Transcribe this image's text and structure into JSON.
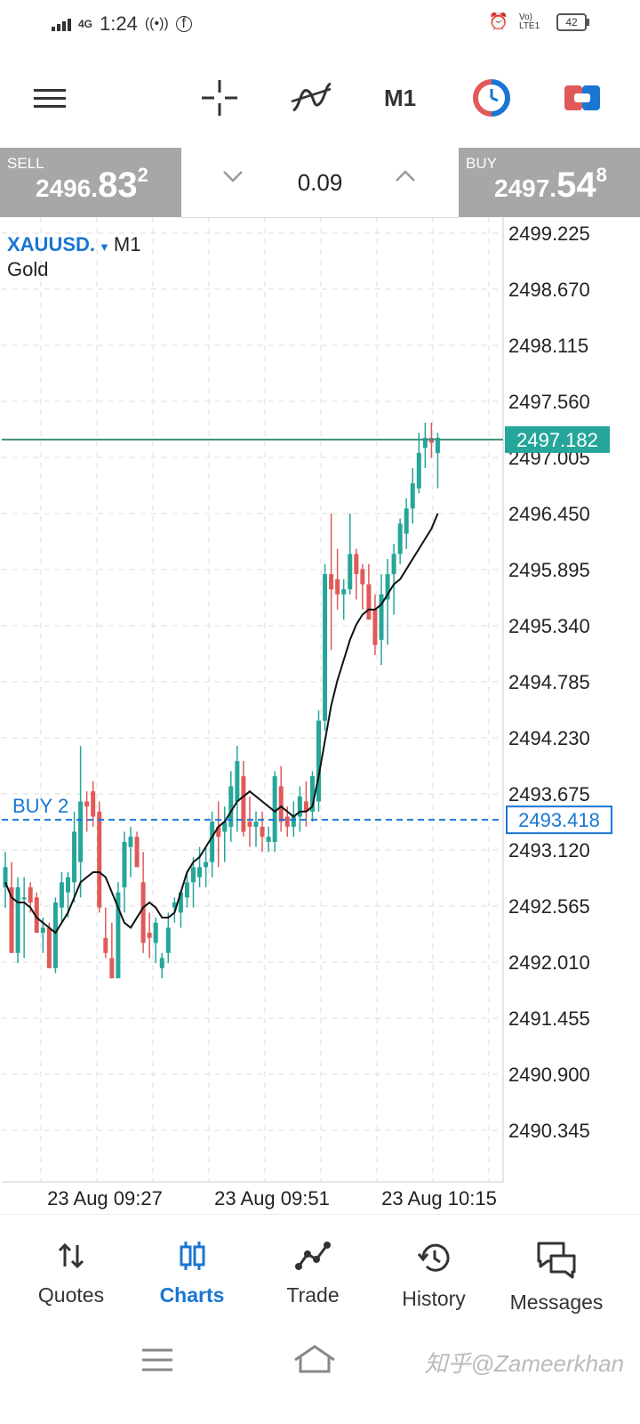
{
  "status_bar": {
    "network": "4G",
    "time": "1:24",
    "volte": "Vo) LTE1",
    "battery": "42"
  },
  "toolbar": {
    "timeframe": "M1"
  },
  "trade": {
    "sell_label": "SELL",
    "sell_price_main": "2496.",
    "sell_price_big": "83",
    "sell_price_sup": "2",
    "lot": "0.09",
    "buy_label": "BUY",
    "buy_price_main": "2497.",
    "buy_price_big": "54",
    "buy_price_sup": "8"
  },
  "chart": {
    "symbol": "XAUUSD.",
    "timeframe": "M1",
    "description": "Gold",
    "price_levels": [
      "2499.225",
      "2498.670",
      "2498.115",
      "2497.560",
      "2497.005",
      "2496.450",
      "2495.895",
      "2495.340",
      "2494.785",
      "2494.230",
      "2493.675",
      "2493.120",
      "2492.565",
      "2492.010",
      "2491.455",
      "2490.900",
      "2490.345"
    ],
    "time_labels": [
      "23 Aug 09:27",
      "23 Aug 09:51",
      "23 Aug 10:15"
    ],
    "current_price_label": "2497.182",
    "current_price": 2497.182,
    "order_line_label": "BUY 2",
    "order_price_label": "2493.418",
    "order_price": 2493.418,
    "colors": {
      "bull": "#26a69a",
      "bear": "#e05a5a",
      "order": "#1976d2",
      "ma": "#111111",
      "current": "#3e8e7e"
    }
  },
  "chart_data": {
    "type": "candlestick",
    "ylim": [
      2489.9,
      2499.45
    ],
    "candles": [
      {
        "o": 2492.75,
        "h": 2493.1,
        "l": 2492.55,
        "c": 2492.95
      },
      {
        "o": 2492.75,
        "h": 2493.0,
        "l": 2492.1,
        "c": 2492.1
      },
      {
        "o": 2492.1,
        "h": 2492.85,
        "l": 2492.0,
        "c": 2492.75
      },
      {
        "o": 2492.65,
        "h": 2492.85,
        "l": 2492.05,
        "c": 2492.65
      },
      {
        "o": 2492.75,
        "h": 2492.8,
        "l": 2492.5,
        "c": 2492.6
      },
      {
        "o": 2492.65,
        "h": 2492.7,
        "l": 2492.3,
        "c": 2492.3
      },
      {
        "o": 2492.3,
        "h": 2492.45,
        "l": 2492.1,
        "c": 2492.35
      },
      {
        "o": 2492.35,
        "h": 2492.4,
        "l": 2491.95,
        "c": 2491.95
      },
      {
        "o": 2491.95,
        "h": 2492.65,
        "l": 2491.9,
        "c": 2492.6
      },
      {
        "o": 2492.55,
        "h": 2492.9,
        "l": 2492.4,
        "c": 2492.8
      },
      {
        "o": 2492.7,
        "h": 2492.9,
        "l": 2492.45,
        "c": 2492.85
      },
      {
        "o": 2492.8,
        "h": 2493.5,
        "l": 2492.6,
        "c": 2493.3
      },
      {
        "o": 2493.0,
        "h": 2494.15,
        "l": 2492.65,
        "c": 2493.6
      },
      {
        "o": 2493.6,
        "h": 2493.7,
        "l": 2493.3,
        "c": 2493.55
      },
      {
        "o": 2493.7,
        "h": 2493.8,
        "l": 2493.35,
        "c": 2493.45
      },
      {
        "o": 2493.5,
        "h": 2493.6,
        "l": 2492.5,
        "c": 2492.55
      },
      {
        "o": 2492.25,
        "h": 2492.55,
        "l": 2492.05,
        "c": 2492.1
      },
      {
        "o": 2492.05,
        "h": 2492.4,
        "l": 2491.85,
        "c": 2491.85
      },
      {
        "o": 2491.85,
        "h": 2492.8,
        "l": 2491.85,
        "c": 2492.7
      },
      {
        "o": 2492.75,
        "h": 2493.3,
        "l": 2492.5,
        "c": 2493.2
      },
      {
        "o": 2493.15,
        "h": 2493.35,
        "l": 2492.85,
        "c": 2493.25
      },
      {
        "o": 2493.25,
        "h": 2493.3,
        "l": 2492.95,
        "c": 2492.95
      },
      {
        "o": 2492.8,
        "h": 2493.1,
        "l": 2492.1,
        "c": 2492.2
      },
      {
        "o": 2492.3,
        "h": 2492.5,
        "l": 2492.05,
        "c": 2492.25
      },
      {
        "o": 2492.2,
        "h": 2492.45,
        "l": 2492.0,
        "c": 2492.4
      },
      {
        "o": 2491.95,
        "h": 2492.1,
        "l": 2491.85,
        "c": 2492.05
      },
      {
        "o": 2492.1,
        "h": 2492.5,
        "l": 2492.0,
        "c": 2492.35
      },
      {
        "o": 2492.55,
        "h": 2492.65,
        "l": 2492.4,
        "c": 2492.6
      },
      {
        "o": 2492.5,
        "h": 2492.7,
        "l": 2492.35,
        "c": 2492.7
      },
      {
        "o": 2492.65,
        "h": 2492.9,
        "l": 2492.55,
        "c": 2492.8
      },
      {
        "o": 2492.8,
        "h": 2493.05,
        "l": 2492.55,
        "c": 2492.95
      },
      {
        "o": 2492.85,
        "h": 2493.15,
        "l": 2492.75,
        "c": 2492.95
      },
      {
        "o": 2492.95,
        "h": 2493.15,
        "l": 2492.75,
        "c": 2493.0
      },
      {
        "o": 2493.0,
        "h": 2493.5,
        "l": 2492.85,
        "c": 2493.4
      },
      {
        "o": 2493.35,
        "h": 2493.6,
        "l": 2492.95,
        "c": 2493.25
      },
      {
        "o": 2493.3,
        "h": 2493.55,
        "l": 2493.0,
        "c": 2493.4
      },
      {
        "o": 2493.35,
        "h": 2493.9,
        "l": 2493.2,
        "c": 2493.75
      },
      {
        "o": 2493.6,
        "h": 2494.15,
        "l": 2493.3,
        "c": 2494.0
      },
      {
        "o": 2493.85,
        "h": 2494.0,
        "l": 2493.25,
        "c": 2493.3
      },
      {
        "o": 2493.4,
        "h": 2493.65,
        "l": 2493.15,
        "c": 2493.35
      },
      {
        "o": 2493.35,
        "h": 2493.5,
        "l": 2493.15,
        "c": 2493.4
      },
      {
        "o": 2493.35,
        "h": 2493.5,
        "l": 2493.1,
        "c": 2493.25
      },
      {
        "o": 2493.2,
        "h": 2493.35,
        "l": 2493.1,
        "c": 2493.25
      },
      {
        "o": 2493.2,
        "h": 2493.9,
        "l": 2493.1,
        "c": 2493.85
      },
      {
        "o": 2493.75,
        "h": 2493.95,
        "l": 2493.3,
        "c": 2493.4
      },
      {
        "o": 2493.45,
        "h": 2493.55,
        "l": 2493.25,
        "c": 2493.35
      },
      {
        "o": 2493.35,
        "h": 2493.6,
        "l": 2493.25,
        "c": 2493.45
      },
      {
        "o": 2493.45,
        "h": 2493.75,
        "l": 2493.3,
        "c": 2493.65
      },
      {
        "o": 2493.6,
        "h": 2493.8,
        "l": 2493.35,
        "c": 2493.5
      },
      {
        "o": 2493.5,
        "h": 2493.9,
        "l": 2493.4,
        "c": 2493.85
      },
      {
        "o": 2493.6,
        "h": 2494.5,
        "l": 2493.5,
        "c": 2494.4
      },
      {
        "o": 2494.4,
        "h": 2495.95,
        "l": 2494.3,
        "c": 2495.85
      },
      {
        "o": 2495.85,
        "h": 2496.45,
        "l": 2495.1,
        "c": 2495.7
      },
      {
        "o": 2495.8,
        "h": 2496.1,
        "l": 2495.5,
        "c": 2495.65
      },
      {
        "o": 2495.65,
        "h": 2495.8,
        "l": 2495.4,
        "c": 2495.7
      },
      {
        "o": 2495.7,
        "h": 2496.45,
        "l": 2495.65,
        "c": 2496.05
      },
      {
        "o": 2496.05,
        "h": 2496.1,
        "l": 2495.6,
        "c": 2495.85
      },
      {
        "o": 2495.9,
        "h": 2495.95,
        "l": 2495.5,
        "c": 2495.75
      },
      {
        "o": 2495.75,
        "h": 2495.95,
        "l": 2495.4,
        "c": 2495.4
      },
      {
        "o": 2495.5,
        "h": 2495.65,
        "l": 2495.05,
        "c": 2495.15
      },
      {
        "o": 2495.2,
        "h": 2495.85,
        "l": 2494.95,
        "c": 2495.65
      },
      {
        "o": 2495.6,
        "h": 2496.0,
        "l": 2495.15,
        "c": 2495.85
      },
      {
        "o": 2495.85,
        "h": 2496.15,
        "l": 2495.45,
        "c": 2496.05
      },
      {
        "o": 2496.05,
        "h": 2496.4,
        "l": 2495.95,
        "c": 2496.35
      },
      {
        "o": 2496.25,
        "h": 2496.6,
        "l": 2496.1,
        "c": 2496.5
      },
      {
        "o": 2496.5,
        "h": 2496.9,
        "l": 2496.35,
        "c": 2496.75
      },
      {
        "o": 2496.7,
        "h": 2497.25,
        "l": 2496.65,
        "c": 2497.05
      },
      {
        "o": 2497.1,
        "h": 2497.35,
        "l": 2496.9,
        "c": 2497.2
      },
      {
        "o": 2497.2,
        "h": 2497.35,
        "l": 2497.0,
        "c": 2497.15
      },
      {
        "o": 2497.05,
        "h": 2497.25,
        "l": 2496.7,
        "c": 2497.2
      }
    ],
    "moving_average": [
      2492.8,
      2492.65,
      2492.6,
      2492.6,
      2492.55,
      2492.45,
      2492.4,
      2492.35,
      2492.3,
      2492.4,
      2492.5,
      2492.65,
      2492.8,
      2492.85,
      2492.9,
      2492.9,
      2492.85,
      2492.7,
      2492.55,
      2492.4,
      2492.35,
      2492.45,
      2492.55,
      2492.6,
      2492.55,
      2492.45,
      2492.45,
      2492.5,
      2492.7,
      2492.9,
      2493.0,
      2493.05,
      2493.15,
      2493.25,
      2493.35,
      2493.4,
      2493.5,
      2493.6,
      2493.65,
      2493.7,
      2493.65,
      2493.6,
      2493.55,
      2493.5,
      2493.55,
      2493.5,
      2493.45,
      2493.5,
      2493.5,
      2493.55,
      2493.85,
      2494.2,
      2494.55,
      2494.8,
      2495.0,
      2495.2,
      2495.35,
      2495.45,
      2495.5,
      2495.5,
      2495.55,
      2495.65,
      2495.75,
      2495.8,
      2495.9,
      2496.0,
      2496.1,
      2496.2,
      2496.3,
      2496.45
    ]
  },
  "bottom_nav": {
    "quotes": "Quotes",
    "charts": "Charts",
    "trade": "Trade",
    "history": "History",
    "messages": "Messages"
  },
  "watermark": "知乎@Zameerkhan"
}
